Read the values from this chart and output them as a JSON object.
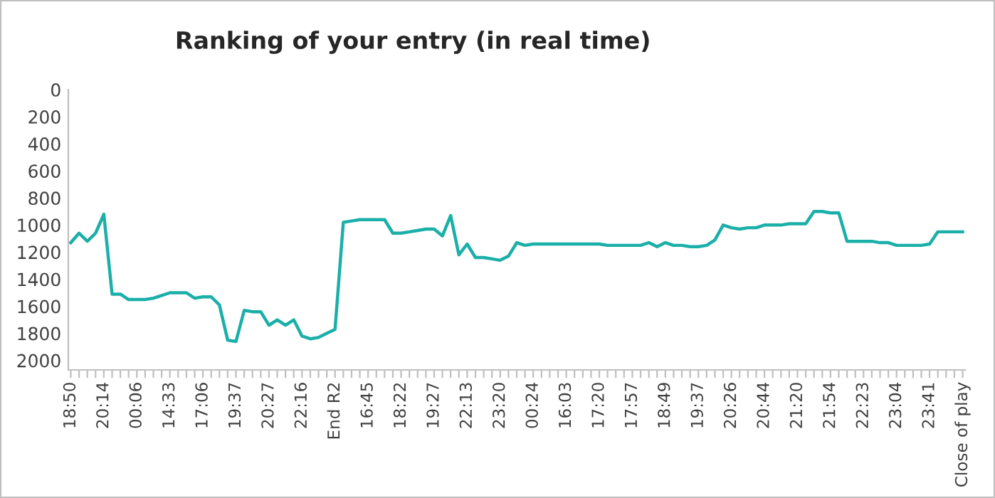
{
  "chart_data": {
    "type": "line",
    "title": "Ranking of your entry (in real time)",
    "categories": [
      "18:50",
      null,
      null,
      null,
      "20:14",
      null,
      null,
      null,
      "00:06",
      null,
      null,
      null,
      "14:33",
      null,
      null,
      null,
      "17:06",
      null,
      null,
      null,
      "19:37",
      null,
      null,
      null,
      "20:27",
      null,
      null,
      null,
      "22:16",
      null,
      null,
      null,
      "End R2",
      null,
      null,
      null,
      "16:45",
      null,
      null,
      null,
      "18:22",
      null,
      null,
      null,
      "19:27",
      null,
      null,
      null,
      "22:13",
      null,
      null,
      null,
      "23:20",
      null,
      null,
      null,
      "00:24",
      null,
      null,
      null,
      "16:03",
      null,
      null,
      null,
      "17:20",
      null,
      null,
      null,
      "17:57",
      null,
      null,
      null,
      "18:49",
      null,
      null,
      null,
      "19:37",
      null,
      null,
      null,
      "20:26",
      null,
      null,
      null,
      "20:44",
      null,
      null,
      null,
      "21:20",
      null,
      null,
      null,
      "21:54",
      null,
      null,
      null,
      "22:23",
      null,
      null,
      null,
      "23:04",
      null,
      null,
      null,
      "23:41",
      null,
      null,
      null,
      "Close of play"
    ],
    "series": [
      {
        "color": "#1aafa8",
        "values": [
          1130,
          1060,
          1120,
          1060,
          920,
          1510,
          1510,
          1550,
          1550,
          1550,
          1540,
          1520,
          1500,
          1500,
          1500,
          1540,
          1530,
          1530,
          1590,
          1850,
          1860,
          1630,
          1640,
          1640,
          1740,
          1700,
          1740,
          1700,
          1820,
          1840,
          1830,
          1800,
          1770,
          980,
          970,
          960,
          960,
          960,
          960,
          1060,
          1060,
          1050,
          1040,
          1030,
          1030,
          1080,
          930,
          1220,
          1140,
          1240,
          1240,
          1250,
          1260,
          1230,
          1130,
          1150,
          1140,
          1140,
          1140,
          1140,
          1140,
          1140,
          1140,
          1140,
          1140,
          1150,
          1150,
          1150,
          1150,
          1150,
          1130,
          1160,
          1130,
          1150,
          1150,
          1160,
          1160,
          1150,
          1110,
          1000,
          1020,
          1030,
          1020,
          1020,
          1000,
          1000,
          1000,
          990,
          990,
          990,
          900,
          900,
          910,
          910,
          1120,
          1120,
          1120,
          1120,
          1130,
          1130,
          1150,
          1150,
          1150,
          1150,
          1140,
          1050,
          1050,
          1050,
          1050
        ]
      }
    ],
    "ylim": [
      2070,
      0
    ],
    "yticks": [
      0,
      200,
      400,
      600,
      800,
      1000,
      1200,
      1400,
      1600,
      1800,
      2000
    ],
    "grid": false,
    "marker": "none",
    "line_style": "solid"
  }
}
